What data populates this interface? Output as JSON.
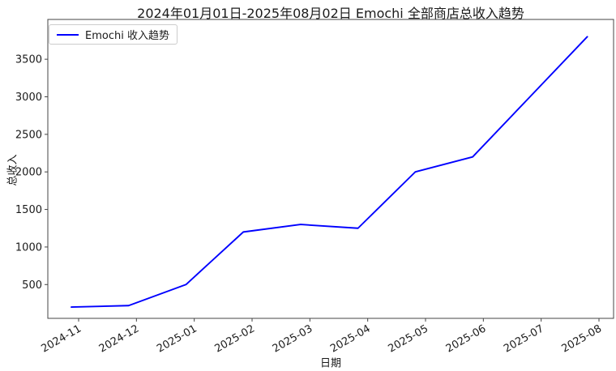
{
  "chart_data": {
    "type": "line",
    "title": "2024年01月01日-2025年08月02日 Emochi 全部商店总收入趋势",
    "xlabel": "日期",
    "ylabel": "总收入",
    "x": [
      "2024-11",
      "2024-12",
      "2025-01",
      "2025-02",
      "2025-03",
      "2025-04",
      "2025-05",
      "2025-06",
      "2025-07",
      "2025-08"
    ],
    "series": [
      {
        "name": "Emochi 收入趋势",
        "color": "#0000ff",
        "values": [
          200,
          220,
          500,
          1200,
          1300,
          1250,
          2000,
          2200,
          3000,
          3800
        ]
      }
    ],
    "yticks": [
      500,
      1000,
      1500,
      2000,
      2500,
      3000,
      3500
    ],
    "ylim": [
      50,
      4030
    ],
    "grid": false,
    "legend_position": "upper left"
  },
  "colors": {
    "line": "#0000ff",
    "axis": "#444444",
    "tick_text": "#1a1a1a",
    "legend_border": "#cccccc",
    "background": "#ffffff"
  }
}
